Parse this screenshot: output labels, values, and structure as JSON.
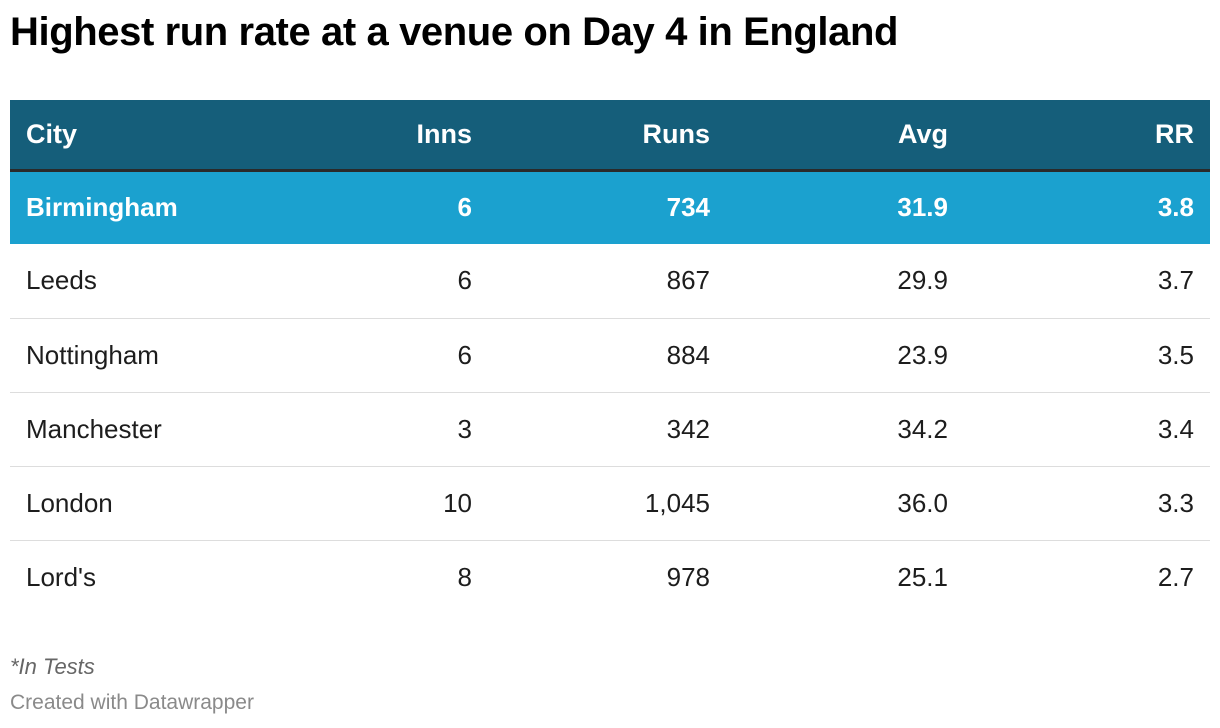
{
  "title": "Highest run rate at a venue on Day 4 in England",
  "footer": {
    "note": "*In Tests",
    "credit": "Created with Datawrapper"
  },
  "colors": {
    "header_bg": "#155e7a",
    "highlight_bg": "#1ba1cf",
    "header_text": "#ffffff"
  },
  "chart_data": {
    "type": "table",
    "title": "Highest run rate at a venue on Day 4 in England",
    "columns": [
      "City",
      "Inns",
      "Runs",
      "Avg",
      "RR"
    ],
    "rows": [
      {
        "city": "Birmingham",
        "inns": "6",
        "runs": "734",
        "avg": "31.9",
        "rr": "3.8",
        "highlighted": true
      },
      {
        "city": "Leeds",
        "inns": "6",
        "runs": "867",
        "avg": "29.9",
        "rr": "3.7",
        "highlighted": false
      },
      {
        "city": "Nottingham",
        "inns": "6",
        "runs": "884",
        "avg": "23.9",
        "rr": "3.5",
        "highlighted": false
      },
      {
        "city": "Manchester",
        "inns": "3",
        "runs": "342",
        "avg": "34.2",
        "rr": "3.4",
        "highlighted": false
      },
      {
        "city": "London",
        "inns": "10",
        "runs": "1,045",
        "avg": "36.0",
        "rr": "3.3",
        "highlighted": false
      },
      {
        "city": "Lord's",
        "inns": "8",
        "runs": "978",
        "avg": "25.1",
        "rr": "2.7",
        "highlighted": false
      }
    ]
  }
}
